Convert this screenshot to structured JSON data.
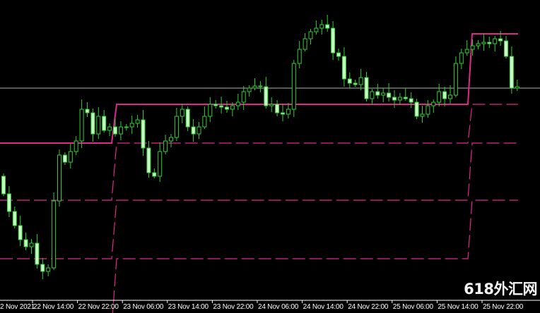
{
  "chart_data": {
    "type": "candlestick",
    "timeframe_note": "",
    "colors": {
      "background": "#000000",
      "candle_outline": "#32cd32",
      "candle_bear_fill": "#c8f7c8",
      "candle_bull_fill": "#000000",
      "level_lines": "#e0288c",
      "price_line": "#b0b0b0",
      "axis": "#ffffff"
    },
    "x_tick_labels": [
      "2 Nov 2021",
      "22 Nov 14:00",
      "22 Nov 22:00",
      "23 Nov 06:00",
      "23 Nov 14:00",
      "23 Nov 22:00",
      "24 Nov 06:00",
      "24 Nov 14:00",
      "24 Nov 22:00",
      "25 Nov 06:00",
      "25 Nov 14:00",
      "25 Nov 22:00"
    ],
    "y_axis_shown": false,
    "ylim": [
      0,
      444
    ],
    "close": [
      169,
      144,
      124,
      104,
      94,
      99,
      69,
      59,
      64,
      159,
      224,
      214,
      229,
      244,
      289,
      284,
      254,
      279,
      259,
      264,
      254,
      264,
      264,
      269,
      274,
      234,
      199,
      194,
      229,
      244,
      249,
      279,
      289,
      264,
      254,
      264,
      279,
      296,
      294,
      292,
      289,
      294,
      299,
      314,
      319,
      322,
      321,
      294,
      296,
      284,
      282,
      289,
      354,
      374,
      389,
      399,
      404,
      409,
      404,
      369,
      364,
      332,
      326,
      324,
      334,
      304,
      314,
      309,
      312,
      306,
      302,
      306,
      304,
      299,
      279,
      282,
      294,
      299,
      314,
      304,
      309,
      354,
      369,
      374,
      379,
      382,
      384,
      382,
      389,
      386,
      364,
      319,
      321
    ],
    "current_price": 319,
    "levels": [
      {
        "style": "solid",
        "values": [
          241,
          296,
          396
        ]
      },
      {
        "style": "dashed",
        "values": [
          160,
          241,
          296
        ]
      },
      {
        "style": "dashed",
        "values": [
          77,
          160,
          241
        ]
      },
      {
        "style": "dashed",
        "values": [
          -20,
          77,
          160
        ]
      }
    ],
    "grid": false
  },
  "watermark": "618外汇网"
}
